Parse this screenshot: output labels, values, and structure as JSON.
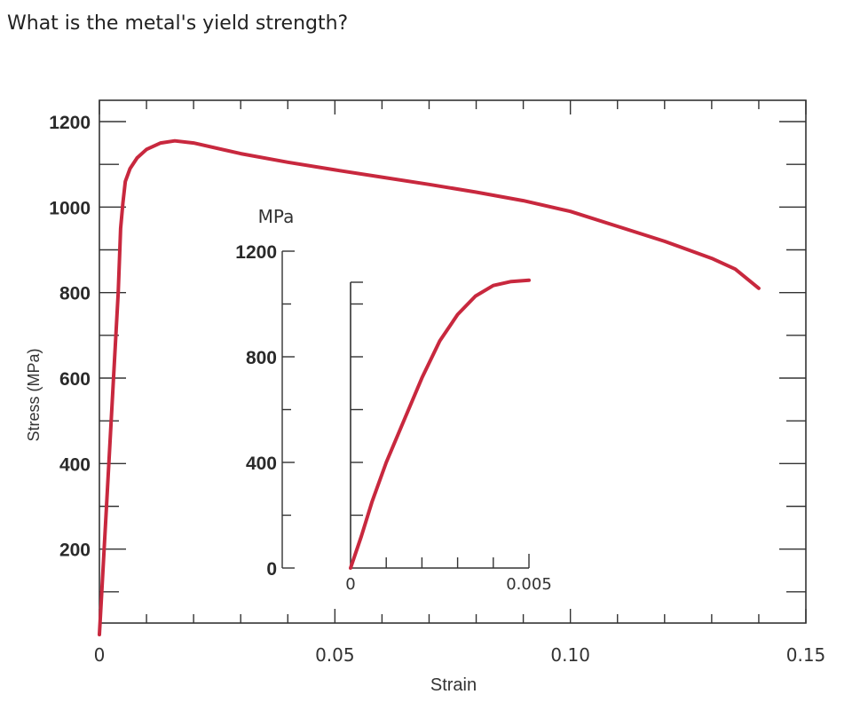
{
  "question": "What is the metal's yield strength?",
  "colors": {
    "curve": "#c8283e",
    "axis": "#333333"
  },
  "chart_data": [
    {
      "type": "line",
      "xlabel": "Strain",
      "ylabel": "Stress (MPa)",
      "xlim": [
        0,
        0.15
      ],
      "ylim": [
        0,
        1200
      ],
      "x_ticks": [
        0,
        0.05,
        0.1,
        0.15
      ],
      "x_tick_labels": [
        "0",
        "0.05",
        "0.10",
        "0.15"
      ],
      "y_ticks": [
        200,
        400,
        600,
        800,
        1000,
        1200
      ],
      "y_tick_labels": [
        "200",
        "400",
        "600",
        "800",
        "1000",
        "1200"
      ],
      "grid": false,
      "series": [
        {
          "x": [
            0,
            0.0015,
            0.003,
            0.004,
            0.0045,
            0.005,
            0.0055,
            0.0065,
            0.008,
            0.01,
            0.013,
            0.016,
            0.02,
            0.03,
            0.04,
            0.05,
            0.06,
            0.07,
            0.08,
            0.09,
            0.1,
            0.11,
            0.12,
            0.13,
            0.135,
            0.14
          ],
          "y": [
            0,
            300,
            600,
            800,
            950,
            1010,
            1060,
            1090,
            1115,
            1135,
            1150,
            1155,
            1150,
            1125,
            1105,
            1087,
            1070,
            1053,
            1035,
            1015,
            990,
            955,
            920,
            880,
            855,
            810
          ]
        }
      ]
    },
    {
      "type": "line",
      "title": "MPa",
      "xlim": [
        0,
        0.005
      ],
      "ylim": [
        0,
        1200
      ],
      "x_tick_labels": [
        "0",
        "0.005"
      ],
      "y_ticks": [
        0,
        400,
        800,
        1200
      ],
      "y_tick_labels": [
        "0",
        "400",
        "800",
        "1200"
      ],
      "grid": false,
      "series": [
        {
          "x": [
            0,
            0.0003,
            0.0006,
            0.001,
            0.0015,
            0.002,
            0.0025,
            0.003,
            0.0035,
            0.004,
            0.0045,
            0.005
          ],
          "y": [
            0,
            120,
            250,
            400,
            560,
            720,
            860,
            960,
            1030,
            1070,
            1085,
            1090
          ]
        }
      ]
    }
  ]
}
